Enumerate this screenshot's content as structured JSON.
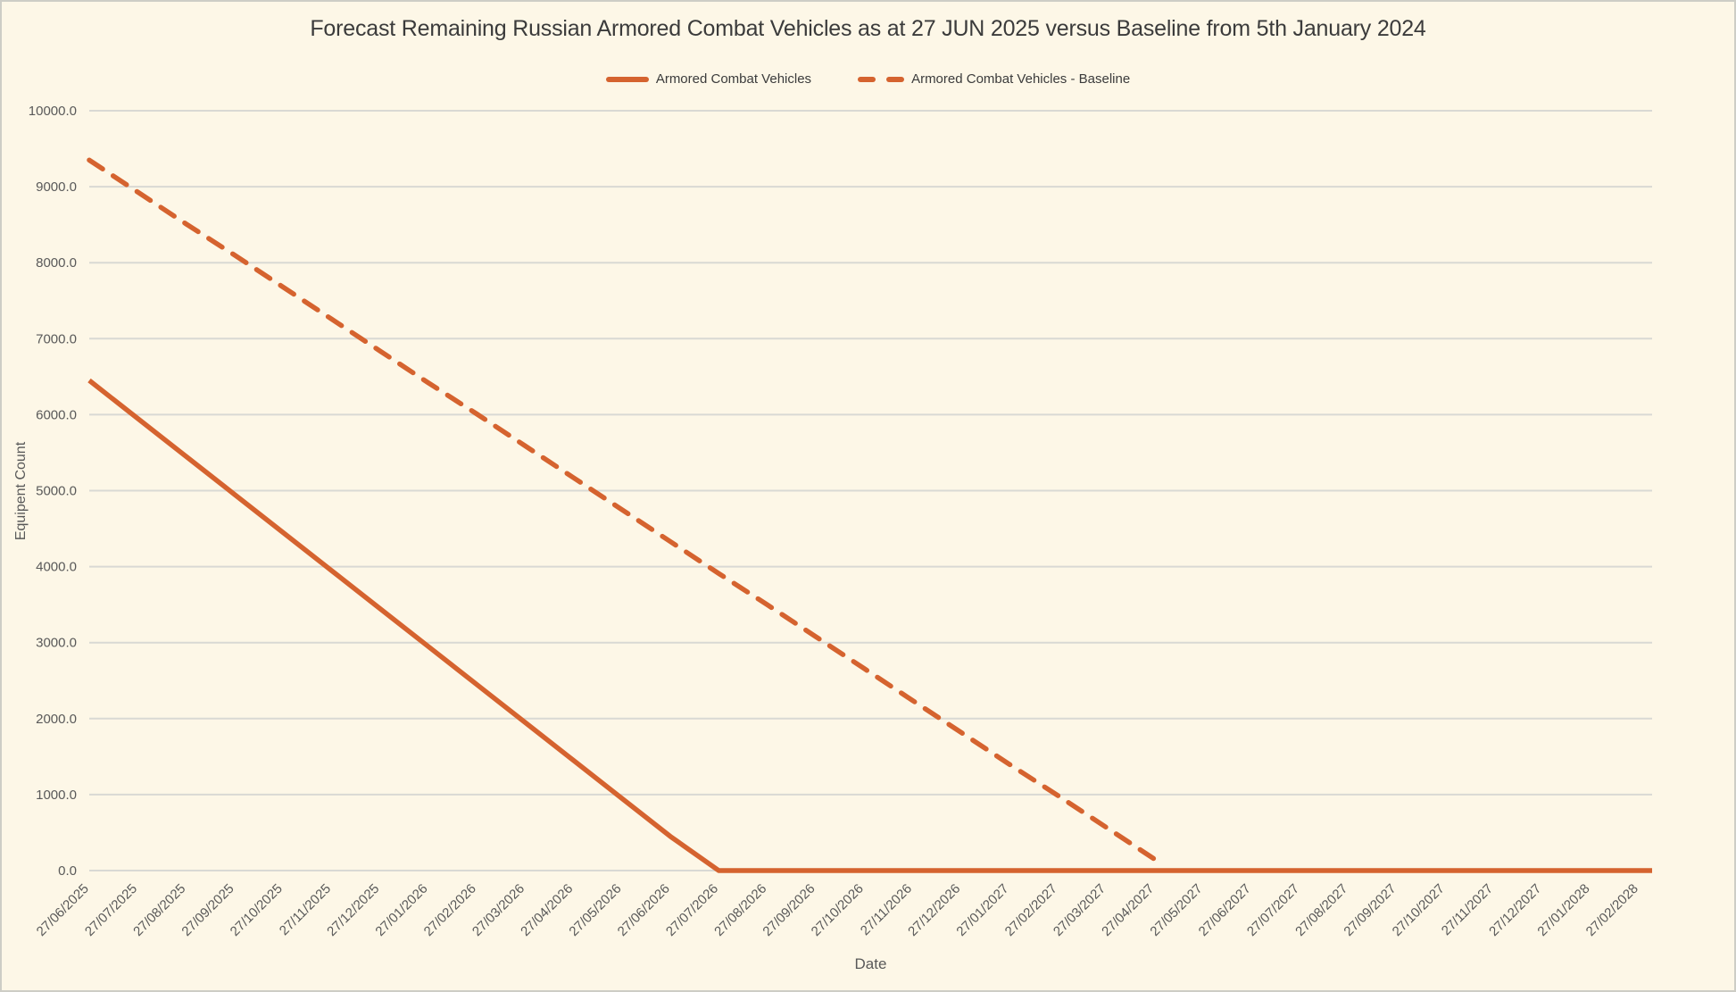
{
  "chart_data": {
    "type": "line",
    "title": "Forecast Remaining Russian Armored Combat Vehicles as at 27 JUN 2025 versus Baseline from 5th January 2024",
    "xlabel": "Date",
    "ylabel": "Equipent Count",
    "ylim": [
      0,
      10000
    ],
    "ytick_step": 1000,
    "ytick_labels": [
      "0.0",
      "1000.0",
      "2000.0",
      "3000.0",
      "4000.0",
      "5000.0",
      "6000.0",
      "7000.0",
      "8000.0",
      "9000.0",
      "10000.0"
    ],
    "grid": "horizontal",
    "legend_position": "top-center",
    "colors": {
      "line": "#D5632F",
      "background": "#FDF7E7",
      "gridline": "#D9D9D4",
      "title_text": "#3B3B3B",
      "axis_text": "#595959"
    },
    "categories": [
      "27/06/2025",
      "27/07/2025",
      "27/08/2025",
      "27/09/2025",
      "27/10/2025",
      "27/11/2025",
      "27/12/2025",
      "27/01/2026",
      "27/02/2026",
      "27/03/2026",
      "27/04/2026",
      "27/05/2026",
      "27/06/2026",
      "27/07/2026",
      "27/08/2026",
      "27/09/2026",
      "27/10/2026",
      "27/11/2026",
      "27/12/2026",
      "27/01/2027",
      "27/02/2027",
      "27/03/2027",
      "27/04/2027",
      "27/05/2027",
      "27/06/2027",
      "27/07/2027",
      "27/08/2027",
      "27/09/2027",
      "27/10/2027",
      "27/11/2027",
      "27/12/2027",
      "27/01/2028",
      "27/02/2028"
    ],
    "series": [
      {
        "name": "Armored Combat Vehicles",
        "style": "solid",
        "color": "#D5632F",
        "extend_to_plot_right": true,
        "values": [
          6450,
          5950,
          5450,
          4950,
          4450,
          3950,
          3450,
          2950,
          2450,
          1950,
          1450,
          950,
          450,
          0,
          0,
          0,
          0,
          0,
          0,
          0,
          0,
          0,
          0,
          0,
          0,
          0,
          0,
          0,
          0,
          0,
          0,
          0,
          0
        ]
      },
      {
        "name": "Armored Combat Vehicles - Baseline",
        "style": "dashed",
        "color": "#D5632F",
        "extend_to_plot_right": false,
        "values": [
          9350,
          8930,
          8510,
          8100,
          7680,
          7260,
          6840,
          6420,
          6010,
          5590,
          5170,
          4750,
          4330,
          3910,
          3500,
          3080,
          2660,
          2240,
          1820,
          1400,
          990,
          570,
          150,
          null,
          null,
          null,
          null,
          null,
          null,
          null,
          null,
          null,
          null
        ]
      }
    ]
  }
}
